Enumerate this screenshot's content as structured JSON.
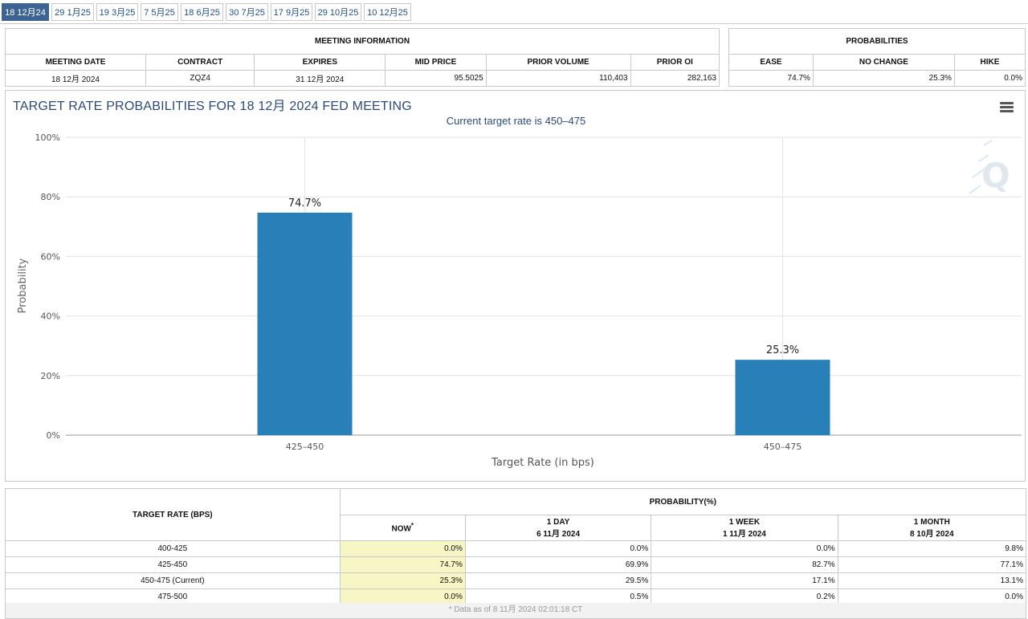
{
  "tabs": [
    "18 12月24",
    "29 1月25",
    "19 3月25",
    "7 5月25",
    "18 6月25",
    "30 7月25",
    "17 9月25",
    "29 10月25",
    "10 12月25"
  ],
  "meeting_info": {
    "title": "MEETING INFORMATION",
    "headers": [
      "MEETING DATE",
      "CONTRACT",
      "EXPIRES",
      "MID PRICE",
      "PRIOR VOLUME",
      "PRIOR OI"
    ],
    "values": [
      "18 12月 2024",
      "ZQZ4",
      "31 12月 2024",
      "95.5025",
      "110,403",
      "282,163"
    ]
  },
  "probabilities": {
    "title": "PROBABILITIES",
    "headers": [
      "EASE",
      "NO CHANGE",
      "HIKE"
    ],
    "values": [
      "74.7%",
      "25.3%",
      "0.0%"
    ]
  },
  "chart": {
    "title": "TARGET RATE PROBABILITIES FOR 18 12月 2024 FED MEETING",
    "subtitle": "Current target rate is 450–475",
    "menu_icon": "hamburger-menu-icon",
    "watermark_icon": "q-logo-icon"
  },
  "chart_data": {
    "type": "bar",
    "categories": [
      "425–450",
      "450–475"
    ],
    "values": [
      74.7,
      25.3
    ],
    "data_labels": [
      "74.7%",
      "25.3%"
    ],
    "xlabel": "Target Rate (in bps)",
    "ylabel": "Probability",
    "ylim": [
      0,
      100
    ],
    "yticks": [
      "0%",
      "20%",
      "40%",
      "60%",
      "80%",
      "100%"
    ],
    "grid": true,
    "bar_color": "#2980b9"
  },
  "rate_table": {
    "col1_header": "TARGET RATE (BPS)",
    "group_header": "PROBABILITY(%)",
    "now_label": "NOW",
    "now_marker": "*",
    "day_label": "1 DAY",
    "day_date": "6 11月 2024",
    "week_label": "1 WEEK",
    "week_date": "1 11月 2024",
    "month_label": "1 MONTH",
    "month_date": "8 10月 2024",
    "rows": [
      {
        "rate": "400-425",
        "now": "0.0%",
        "day": "0.0%",
        "week": "0.0%",
        "month": "9.8%"
      },
      {
        "rate": "425-450",
        "now": "74.7%",
        "day": "69.9%",
        "week": "82.7%",
        "month": "77.1%"
      },
      {
        "rate": "450-475 (Current)",
        "now": "25.3%",
        "day": "29.5%",
        "week": "17.1%",
        "month": "13.1%"
      },
      {
        "rate": "475-500",
        "now": "0.0%",
        "day": "0.5%",
        "week": "0.2%",
        "month": "0.0%"
      }
    ],
    "footnote": "* Data as of 8 11月 2024 02:01:18 CT"
  }
}
